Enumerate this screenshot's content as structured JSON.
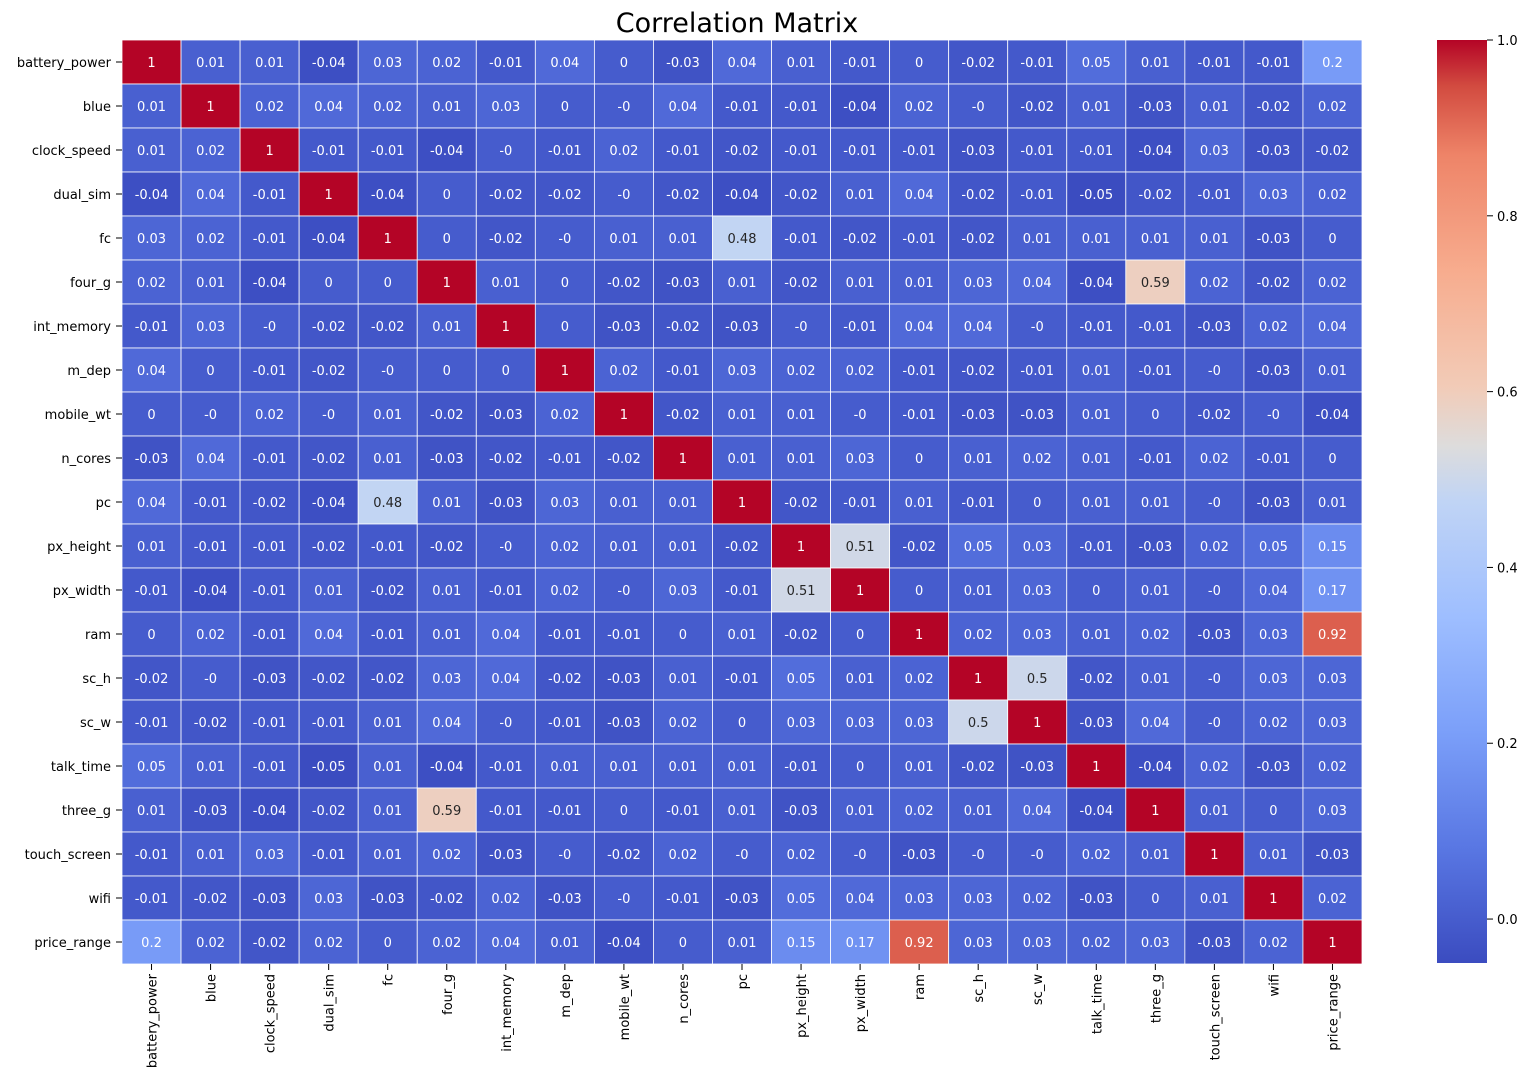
{
  "chart_data": {
    "type": "heatmap",
    "title": "Correlation Matrix",
    "colormap": "coolwarm",
    "color_low": "#3b4cc0",
    "color_mid": "#dddcdc",
    "color_high": "#b40426",
    "vmin": -0.05,
    "vmax": 1.0,
    "grid_lines": "white",
    "colorbar_ticks": [
      "0.0",
      "0.2",
      "0.4",
      "0.6",
      "0.8",
      "1.0"
    ],
    "colorbar_tick_values": [
      0.0,
      0.2,
      0.4,
      0.6,
      0.8,
      1.0
    ],
    "labels": [
      "battery_power",
      "blue",
      "clock_speed",
      "dual_sim",
      "fc",
      "four_g",
      "int_memory",
      "m_dep",
      "mobile_wt",
      "n_cores",
      "pc",
      "px_height",
      "px_width",
      "ram",
      "sc_h",
      "sc_w",
      "talk_time",
      "three_g",
      "touch_screen",
      "wifi",
      "price_range"
    ],
    "values": [
      [
        1,
        0.01,
        0.01,
        -0.04,
        0.03,
        0.02,
        -0.01,
        0.04,
        0,
        -0.03,
        0.04,
        0.01,
        -0.01,
        0,
        -0.02,
        -0.01,
        0.05,
        0.01,
        -0.01,
        -0.01,
        0.2
      ],
      [
        0.01,
        1,
        0.02,
        0.04,
        0.02,
        0.01,
        0.03,
        0,
        0,
        0.04,
        -0.01,
        -0.01,
        -0.04,
        0.02,
        0,
        -0.02,
        0.01,
        -0.03,
        0.01,
        -0.02,
        0.02
      ],
      [
        0.01,
        0.02,
        1,
        -0.01,
        -0.01,
        -0.04,
        0,
        -0.01,
        0.02,
        -0.01,
        -0.02,
        -0.01,
        -0.01,
        -0.01,
        -0.03,
        -0.01,
        -0.01,
        -0.04,
        0.03,
        -0.03,
        -0.02
      ],
      [
        -0.04,
        0.04,
        -0.01,
        1,
        -0.04,
        0,
        -0.02,
        -0.02,
        0,
        -0.02,
        -0.04,
        -0.02,
        0.01,
        0.04,
        -0.02,
        -0.01,
        -0.05,
        -0.02,
        -0.01,
        0.03,
        0.02
      ],
      [
        0.03,
        0.02,
        -0.01,
        -0.04,
        1,
        0,
        -0.02,
        0,
        0.01,
        0.01,
        0.48,
        -0.01,
        -0.02,
        -0.01,
        -0.02,
        0.01,
        0.01,
        0.01,
        0.01,
        -0.03,
        0
      ],
      [
        0.02,
        0.01,
        -0.04,
        0,
        0,
        1,
        0.01,
        0,
        -0.02,
        -0.03,
        0.01,
        -0.02,
        0.01,
        0.01,
        0.03,
        0.04,
        -0.04,
        0.59,
        0.02,
        -0.02,
        0.02
      ],
      [
        -0.01,
        0.03,
        0,
        -0.02,
        -0.02,
        0.01,
        1,
        0,
        -0.03,
        -0.02,
        -0.03,
        0,
        -0.01,
        0.04,
        0.04,
        0,
        -0.01,
        -0.01,
        -0.03,
        0.02,
        0.04
      ],
      [
        0.04,
        0,
        -0.01,
        -0.02,
        0,
        0,
        0,
        1,
        0.02,
        -0.01,
        0.03,
        0.02,
        0.02,
        -0.01,
        -0.02,
        -0.01,
        0.01,
        -0.01,
        0,
        -0.03,
        0.01
      ],
      [
        0,
        0,
        0.02,
        0,
        0.01,
        -0.02,
        -0.03,
        0.02,
        1,
        -0.02,
        0.01,
        0.01,
        0,
        -0.01,
        -0.03,
        -0.03,
        0.01,
        0,
        -0.02,
        0,
        -0.04
      ],
      [
        -0.03,
        0.04,
        -0.01,
        -0.02,
        0.01,
        -0.03,
        -0.02,
        -0.01,
        -0.02,
        1,
        0.01,
        0.01,
        0.03,
        0,
        0.01,
        0.02,
        0.01,
        -0.01,
        0.02,
        -0.01,
        0
      ],
      [
        0.04,
        -0.01,
        -0.02,
        -0.04,
        0.48,
        0.01,
        -0.03,
        0.03,
        0.01,
        0.01,
        1,
        -0.02,
        -0.01,
        0.01,
        -0.01,
        0,
        0.01,
        0.01,
        0,
        -0.03,
        0.01
      ],
      [
        0.01,
        -0.01,
        -0.01,
        -0.02,
        -0.01,
        -0.02,
        0,
        0.02,
        0.01,
        0.01,
        -0.02,
        1,
        0.51,
        -0.02,
        0.05,
        0.03,
        -0.01,
        -0.03,
        0.02,
        0.05,
        0.15
      ],
      [
        -0.01,
        -0.04,
        -0.01,
        0.01,
        -0.02,
        0.01,
        -0.01,
        0.02,
        0,
        0.03,
        -0.01,
        0.51,
        1,
        0,
        0.01,
        0.03,
        0,
        0.01,
        0,
        0.04,
        0.17
      ],
      [
        0,
        0.02,
        -0.01,
        0.04,
        -0.01,
        0.01,
        0.04,
        -0.01,
        -0.01,
        0,
        0.01,
        -0.02,
        0,
        1,
        0.02,
        0.03,
        0.01,
        0.02,
        -0.03,
        0.03,
        0.92
      ],
      [
        -0.02,
        0,
        -0.03,
        -0.02,
        -0.02,
        0.03,
        0.04,
        -0.02,
        -0.03,
        0.01,
        -0.01,
        0.05,
        0.01,
        0.02,
        1,
        0.5,
        -0.02,
        0.01,
        0,
        0.03,
        0.03
      ],
      [
        -0.01,
        -0.02,
        -0.01,
        -0.01,
        0.01,
        0.04,
        0,
        -0.01,
        -0.03,
        0.02,
        0,
        0.03,
        0.03,
        0.03,
        0.5,
        1,
        -0.03,
        0.04,
        0,
        0.02,
        0.03
      ],
      [
        0.05,
        0.01,
        -0.01,
        -0.05,
        0.01,
        -0.04,
        -0.01,
        0.01,
        0.01,
        0.01,
        0.01,
        -0.01,
        0,
        0.01,
        -0.02,
        -0.03,
        1,
        -0.04,
        0.02,
        -0.03,
        0.02
      ],
      [
        0.01,
        -0.03,
        -0.04,
        -0.02,
        0.01,
        0.59,
        -0.01,
        -0.01,
        0,
        -0.01,
        0.01,
        -0.03,
        0.01,
        0.02,
        0.01,
        0.04,
        -0.04,
        1,
        0.01,
        0,
        0.03
      ],
      [
        -0.01,
        0.01,
        0.03,
        -0.01,
        0.01,
        0.02,
        -0.03,
        0,
        -0.02,
        0.02,
        0,
        0.02,
        0,
        -0.03,
        0,
        0,
        0.02,
        0.01,
        1,
        0.01,
        -0.03
      ],
      [
        -0.01,
        -0.02,
        -0.03,
        0.03,
        -0.03,
        -0.02,
        0.02,
        -0.03,
        0,
        -0.01,
        -0.03,
        0.05,
        0.04,
        0.03,
        0.03,
        0.02,
        -0.03,
        0,
        0.01,
        1,
        0.02
      ],
      [
        0.2,
        0.02,
        -0.02,
        0.02,
        0,
        0.02,
        0.04,
        0.01,
        -0.04,
        0,
        0.01,
        0.15,
        0.17,
        0.92,
        0.03,
        0.03,
        0.02,
        0.03,
        -0.03,
        0.02,
        1
      ]
    ]
  }
}
